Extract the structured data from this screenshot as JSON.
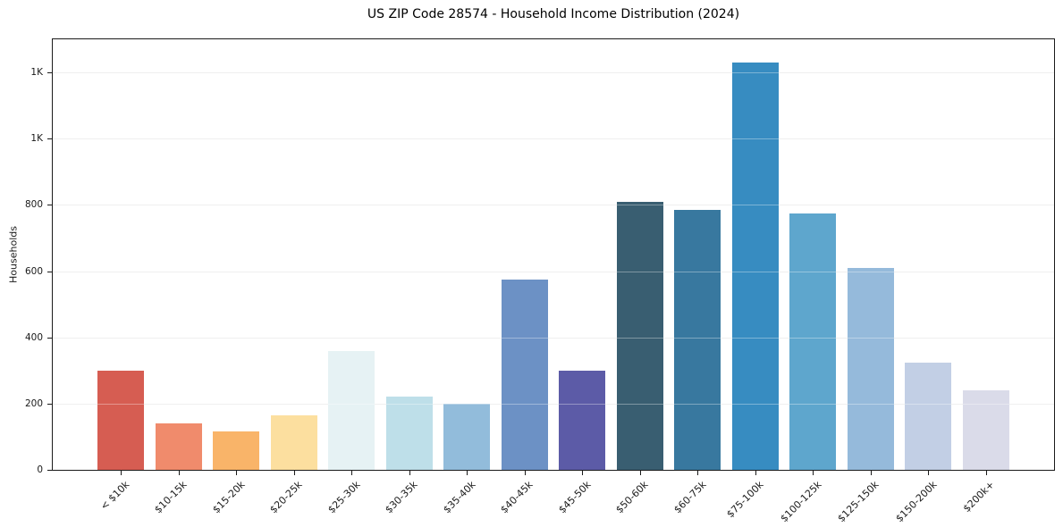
{
  "chart_data": {
    "type": "bar",
    "title": "US ZIP Code 28574 - Household Income Distribution (2024)",
    "xlabel": "",
    "ylabel": "Households",
    "categories": [
      "< $10k",
      "$10-15k",
      "$15-20k",
      "$20-25k",
      "$25-30k",
      "$30-35k",
      "$35-40k",
      "$40-45k",
      "$45-50k",
      "$50-60k",
      "$60-75k",
      "$75-100k",
      "$100-125k",
      "$125-150k",
      "$150-200k",
      "$200k+"
    ],
    "values": [
      300,
      140,
      115,
      165,
      360,
      220,
      200,
      575,
      300,
      810,
      785,
      1230,
      775,
      610,
      325,
      240
    ],
    "bar_colors": [
      "#d65d52",
      "#f08b6c",
      "#f9b469",
      "#fcdf9f",
      "#e6f2f4",
      "#bedfe9",
      "#92bcdb",
      "#6c91c5",
      "#5c5ba7",
      "#395e71",
      "#38789f",
      "#378cc1",
      "#5ea6cd",
      "#95badb",
      "#c2cfe5",
      "#dadbe9"
    ],
    "ylim": [
      0,
      1300
    ],
    "yticks": {
      "values": [
        0,
        200,
        400,
        600,
        800,
        1000,
        1200
      ],
      "labels": [
        "0",
        "200",
        "400",
        "600",
        "800",
        "1K",
        "1K"
      ]
    },
    "grid": "horizontal",
    "legend": "none",
    "colors": {
      "background": "#ffffff",
      "spine": "#1a1a1a",
      "gridline": "#e7e7e7",
      "text": "#1a1a1a"
    }
  }
}
